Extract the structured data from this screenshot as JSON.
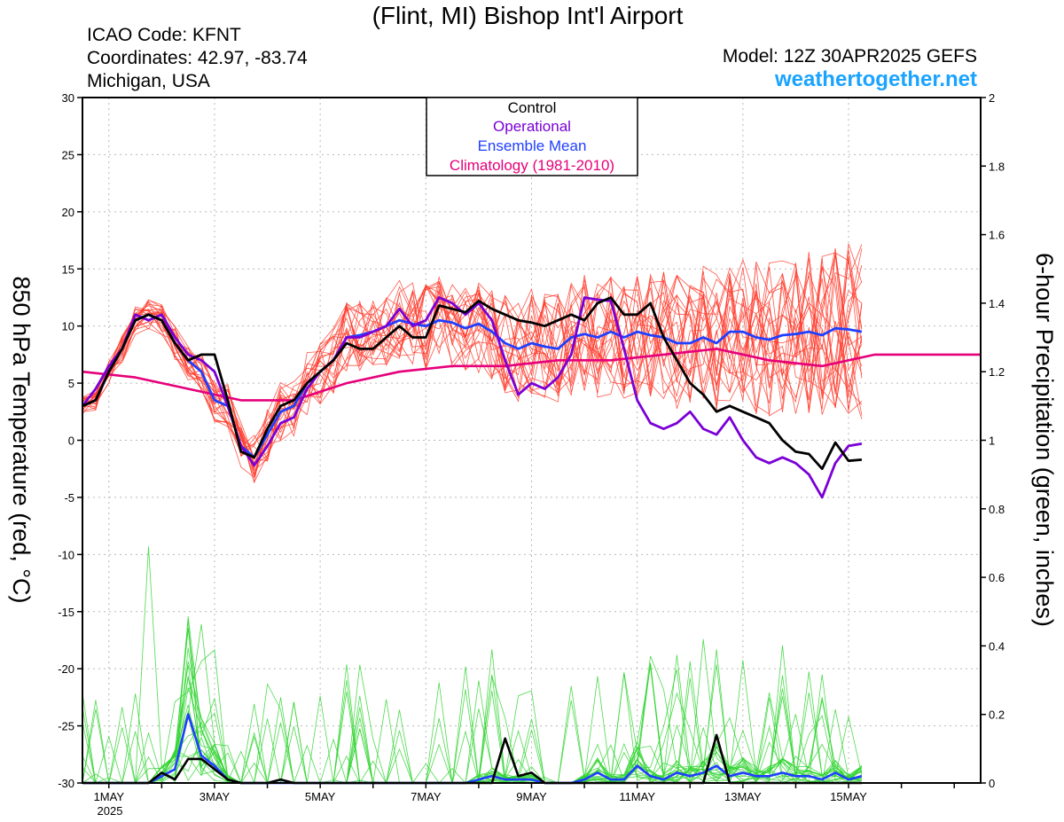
{
  "header": {
    "title": "(Flint, MI) Bishop Int'l Airport",
    "icao": "ICAO Code: KFNT",
    "coordinates": "Coordinates: 42.97, -83.74",
    "region": "Michigan, USA",
    "model": "Model: 12Z 30APR2025 GEFS",
    "site": "weathertogether.net"
  },
  "colors": {
    "control": "#000000",
    "operational": "#7a00d6",
    "ensemble_mean": "#1f3fff",
    "climatology": "#e6007a",
    "members_temp": "#ff3a2a",
    "members_precip": "#2fd42f",
    "site": "#1aa3ff"
  },
  "chart_data": {
    "type": "line",
    "x_unit": "days since 2025-04-30 12Z",
    "xlim": [
      0.5,
      17.5
    ],
    "x_ticks": [
      {
        "x": 1,
        "label": "1MAY"
      },
      {
        "x": 3,
        "label": "3MAY"
      },
      {
        "x": 5,
        "label": "5MAY"
      },
      {
        "x": 7,
        "label": "7MAY"
      },
      {
        "x": 9,
        "label": "9MAY"
      },
      {
        "x": 11,
        "label": "11MAY"
      },
      {
        "x": 13,
        "label": "13MAY"
      },
      {
        "x": 15,
        "label": "15MAY"
      }
    ],
    "x_year_label": "2025",
    "left_axis": {
      "label": "850 hPa Temperature (red, °C)",
      "ylim": [
        -30,
        30
      ],
      "ticks": [
        30,
        25,
        20,
        15,
        10,
        5,
        0,
        -5,
        -10,
        -15,
        -20,
        -25,
        -30
      ]
    },
    "right_axis": {
      "label": "6-hour Precipitation (green, inches)",
      "ylim": [
        0,
        2
      ],
      "ticks": [
        2,
        1.8,
        1.6,
        1.4,
        1.2,
        1,
        0.8,
        0.6,
        0.4,
        0.2,
        0
      ]
    },
    "grid": true,
    "legend": {
      "placement": "top-center",
      "entries": [
        "Control",
        "Operational",
        "Ensemble Mean",
        "Climatology (1981-2010)"
      ]
    },
    "temperature": {
      "x_start": 0.5,
      "x_step": 0.25,
      "control": [
        3,
        3.5,
        6,
        8,
        10.5,
        11,
        10.5,
        8.5,
        7,
        7.5,
        7.5,
        3.5,
        -1,
        -1.5,
        1,
        3,
        3.5,
        5,
        6,
        7,
        8.5,
        8,
        8,
        9,
        10,
        9,
        9,
        11.8,
        11.5,
        11.2,
        12.2,
        11.5,
        11,
        10.5,
        10.3,
        10,
        10.5,
        11,
        10.5,
        12,
        12.5,
        11,
        11,
        12,
        9,
        7,
        5,
        4,
        2.5,
        3,
        2.5,
        2,
        1.5,
        0,
        -1,
        -1.2,
        -2.5,
        -0.2,
        -1.8,
        -1.7
      ],
      "operational": [
        3,
        4.5,
        6.5,
        8,
        11,
        10.5,
        11,
        9,
        7.5,
        7,
        6,
        3,
        -0.5,
        -2.2,
        -0.5,
        1.5,
        2,
        4.5,
        6,
        7,
        9,
        9,
        9.5,
        10,
        11.5,
        10,
        10.5,
        12.5,
        12,
        11,
        12,
        10.5,
        7,
        4,
        5,
        4.5,
        5.5,
        7.5,
        12.5,
        12.3,
        12.2,
        8,
        3.5,
        1.5,
        1,
        1.5,
        2.5,
        1,
        0.5,
        2,
        0,
        -1.5,
        -2,
        -1.5,
        -2,
        -3,
        -5,
        -2,
        -0.5,
        -0.3
      ],
      "ensemble_mean": [
        3,
        3.5,
        6,
        8,
        10.5,
        11,
        10.5,
        8.5,
        7,
        6,
        3.5,
        3,
        -0.5,
        -1.5,
        0.5,
        2.5,
        3,
        5,
        6,
        7,
        9,
        9.2,
        9.5,
        10,
        10.5,
        10.2,
        10,
        10.5,
        10.3,
        9.8,
        10.2,
        9.5,
        8.5,
        8,
        8.5,
        8.2,
        8,
        9,
        9.3,
        9,
        9.5,
        9,
        9.5,
        9.2,
        9,
        8.5,
        8.5,
        9,
        8.5,
        9.5,
        9.5,
        9,
        8.8,
        9.2,
        9.3,
        9.5,
        9.2,
        9.8,
        9.7,
        9.5
      ],
      "climatology_x": [
        0.5,
        1.5,
        2.5,
        3.5,
        4.5,
        5.5,
        6.5,
        7.5,
        8.5,
        9.5,
        10.5,
        11.5,
        12.5,
        13.5,
        14.5,
        15.5,
        16.5,
        17.5
      ],
      "climatology": [
        6,
        5.5,
        4.5,
        3.5,
        3.5,
        5,
        6,
        6.5,
        6.5,
        7,
        7,
        7.5,
        8,
        7,
        6.5,
        7.5,
        7.5,
        7.5
      ],
      "members_range": "approx. -3 to 18"
    },
    "precipitation": {
      "x_start": 0.5,
      "x_step": 0.25,
      "control": [
        0,
        0,
        0,
        0,
        0,
        0,
        0.03,
        0.01,
        0.07,
        0.07,
        0.04,
        0.01,
        0,
        0,
        0,
        0.01,
        0,
        0,
        0,
        0,
        0,
        0,
        0,
        0,
        0,
        0,
        0,
        0,
        0,
        0,
        0,
        0,
        0.13,
        0.02,
        0.03,
        0,
        0,
        0,
        0,
        0,
        0,
        0,
        0,
        0,
        0,
        0,
        0,
        0,
        0.14,
        0,
        0,
        0,
        0,
        0,
        0,
        0,
        0,
        0,
        0,
        0
      ],
      "ensemble_mean": [
        0,
        0,
        0,
        0,
        0,
        0,
        0.02,
        0.04,
        0.2,
        0.08,
        0.05,
        0.01,
        0,
        0,
        0,
        0,
        0,
        0,
        0,
        0,
        0,
        0,
        0,
        0,
        0,
        0,
        0,
        0,
        0,
        0,
        0.01,
        0.02,
        0.01,
        0.01,
        0.01,
        0,
        0,
        0,
        0.01,
        0.03,
        0.01,
        0.01,
        0.05,
        0.02,
        0.01,
        0.03,
        0.02,
        0.03,
        0.05,
        0.02,
        0.03,
        0.02,
        0.02,
        0.03,
        0.02,
        0.02,
        0.01,
        0.03,
        0.01,
        0.02
      ],
      "members_max": 0.69
    }
  }
}
